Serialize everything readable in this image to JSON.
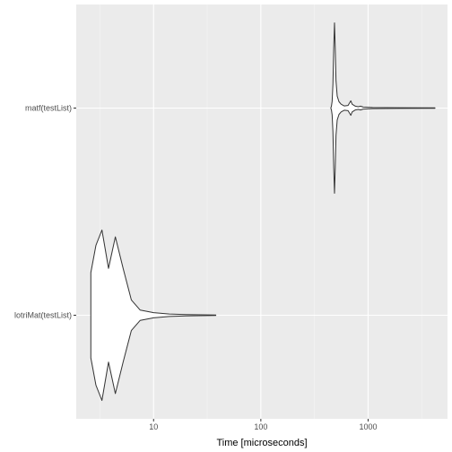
{
  "chart_data": {
    "type": "violin",
    "title": "",
    "xlabel": "Time [microseconds]",
    "ylabel": "",
    "x_scale": "log10",
    "xlim": [
      1.9,
      5500
    ],
    "x_ticks": [
      10,
      100,
      1000
    ],
    "x_tick_labels": [
      "10",
      "100",
      "1000"
    ],
    "categories": [
      "lotriMat(testList)",
      "matf(testList)"
    ],
    "grid": true,
    "legend": "none",
    "series": [
      {
        "category": "lotriMat(testList)",
        "range": [
          2.6,
          38
        ],
        "profile": [
          [
            2.6,
            0.5
          ],
          [
            2.9,
            0.82
          ],
          [
            3.3,
            1.0
          ],
          [
            3.8,
            0.55
          ],
          [
            4.4,
            0.92
          ],
          [
            5.2,
            0.55
          ],
          [
            6.2,
            0.18
          ],
          [
            7.5,
            0.06
          ],
          [
            10,
            0.03
          ],
          [
            14,
            0.015
          ],
          [
            20,
            0.008
          ],
          [
            38,
            0.003
          ]
        ]
      },
      {
        "category": "matf(testList)",
        "range": [
          450,
          4200
        ],
        "profile": [
          [
            450,
            0.006
          ],
          [
            455,
            0.02
          ],
          [
            462,
            0.08
          ],
          [
            470,
            0.28
          ],
          [
            478,
            0.7
          ],
          [
            486,
            1.0
          ],
          [
            494,
            0.7
          ],
          [
            502,
            0.32
          ],
          [
            515,
            0.14
          ],
          [
            535,
            0.075
          ],
          [
            560,
            0.045
          ],
          [
            600,
            0.025
          ],
          [
            650,
            0.03
          ],
          [
            690,
            0.085
          ],
          [
            710,
            0.045
          ],
          [
            760,
            0.022
          ],
          [
            810,
            0.016
          ],
          [
            850,
            0.022
          ],
          [
            900,
            0.012
          ],
          [
            1100,
            0.006
          ],
          [
            2000,
            0.004
          ],
          [
            4200,
            0.003
          ]
        ]
      }
    ]
  },
  "colors": {
    "panel_background": "#ebebeb",
    "grid_major": "#ffffff",
    "grid_minor": "#f5f5f5",
    "violin_fill": "#ffffff",
    "violin_stroke": "#333333",
    "tick_text": "#4d4d4d"
  }
}
